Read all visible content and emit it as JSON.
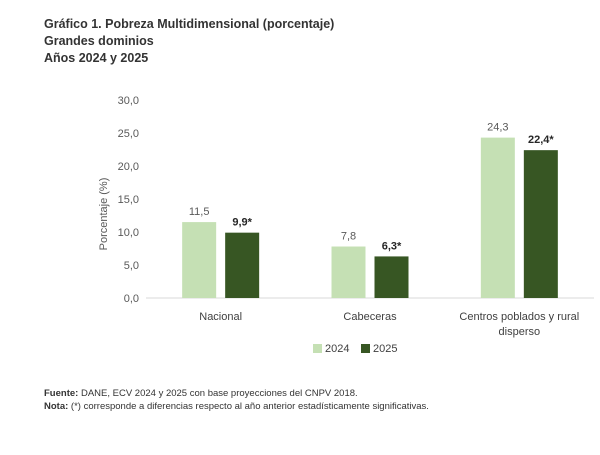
{
  "title": {
    "line1": "Gráfico 1. Pobreza Multidimensional (porcentaje)",
    "line2": "Grandes dominios",
    "line3": "Años 2024 y 2025"
  },
  "chart_data": {
    "type": "bar",
    "categories": [
      [
        "Nacional"
      ],
      [
        "Cabeceras"
      ],
      [
        "Centros poblados y rural",
        "disperso"
      ]
    ],
    "series": [
      {
        "name": "2024",
        "color": "#c5e0b4",
        "values": [
          11.5,
          7.8,
          24.3
        ],
        "labels": [
          "11,5",
          "7,8",
          "24,3"
        ],
        "label_bold": false
      },
      {
        "name": "2025",
        "color": "#375623",
        "values": [
          9.9,
          6.3,
          22.4
        ],
        "labels": [
          "9,9*",
          "6,3*",
          "22,4*"
        ],
        "label_bold": true
      }
    ],
    "ylabel": "Porcentaje (%)",
    "ylim": [
      0,
      30
    ],
    "yticks": [
      "0,0",
      "5,0",
      "10,0",
      "15,0",
      "20,0",
      "25,0",
      "30,0"
    ],
    "legend_position": "bottom",
    "grid": false
  },
  "footnotes": {
    "source_label": "Fuente:",
    "source_text": " DANE, ECV 2024 y 2025 con base proyecciones del CNPV 2018.",
    "note_label": "Nota:",
    "note_text": " (*) corresponde a diferencias respecto al año anterior estadísticamente significativas."
  }
}
